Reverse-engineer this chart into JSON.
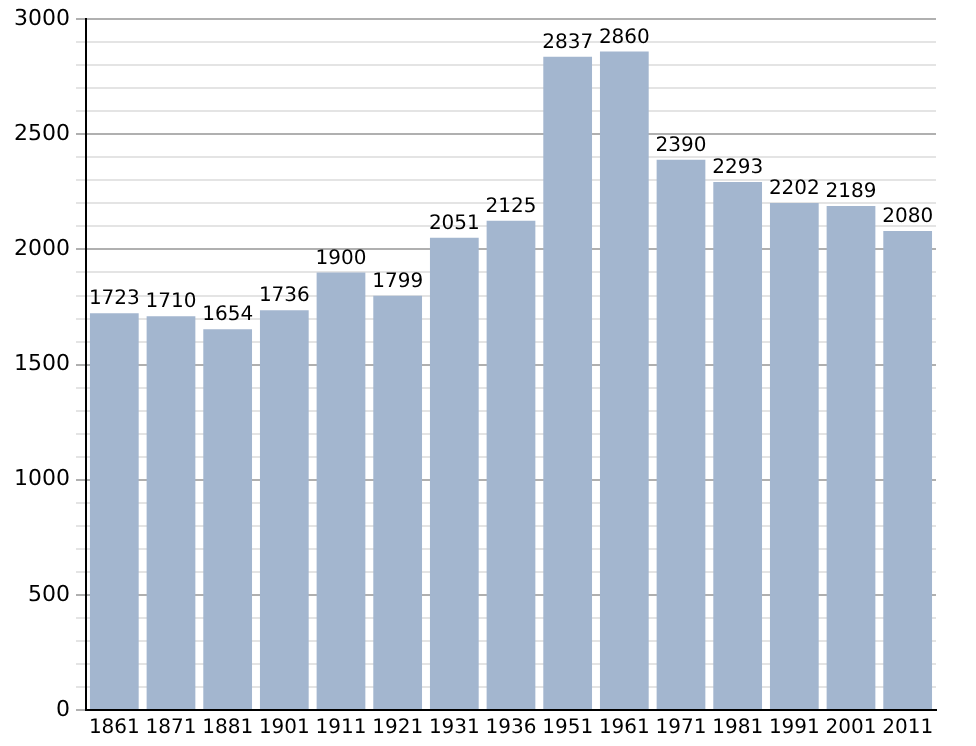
{
  "chart_data": {
    "type": "bar",
    "categories": [
      "1861",
      "1871",
      "1881",
      "1901",
      "1911",
      "1921",
      "1931",
      "1936",
      "1951",
      "1961",
      "1971",
      "1981",
      "1991",
      "2001",
      "2011"
    ],
    "values": [
      1723,
      1710,
      1654,
      1736,
      1900,
      1799,
      2051,
      2125,
      2837,
      2860,
      2390,
      2293,
      2202,
      2189,
      2080
    ],
    "color": "#a3b6cf",
    "ylim": [
      0,
      3000
    ],
    "yticks": [
      0,
      {
        "value": 100,
        "label": null
      },
      {
        "value": 200,
        "label": null
      },
      {
        "value": 300,
        "label": null
      },
      {
        "value": 400,
        "label": null
      },
      500,
      {
        "value": 600,
        "label": null
      },
      {
        "value": 700,
        "label": null
      },
      {
        "value": 800,
        "label": null
      },
      {
        "value": 900,
        "label": null
      },
      1000,
      {
        "value": 1100,
        "label": null
      },
      {
        "value": 1200,
        "label": null
      },
      {
        "value": 1300,
        "label": null
      },
      {
        "value": 1400,
        "label": null
      },
      1500,
      {
        "value": 1600,
        "label": null
      },
      {
        "value": 1700,
        "label": null
      },
      {
        "value": 1800,
        "label": null
      },
      {
        "value": 1900,
        "label": null
      },
      2000,
      {
        "value": 2100,
        "label": null
      },
      {
        "value": 2200,
        "label": null
      },
      {
        "value": 2300,
        "label": null
      },
      {
        "value": 2400,
        "label": null
      },
      2500,
      {
        "value": 2600,
        "label": null
      },
      {
        "value": 2700,
        "label": null
      },
      {
        "value": 2800,
        "label": null
      },
      {
        "value": 2900,
        "label": null
      },
      3000
    ],
    "grid": "y",
    "data_labels": true
  }
}
